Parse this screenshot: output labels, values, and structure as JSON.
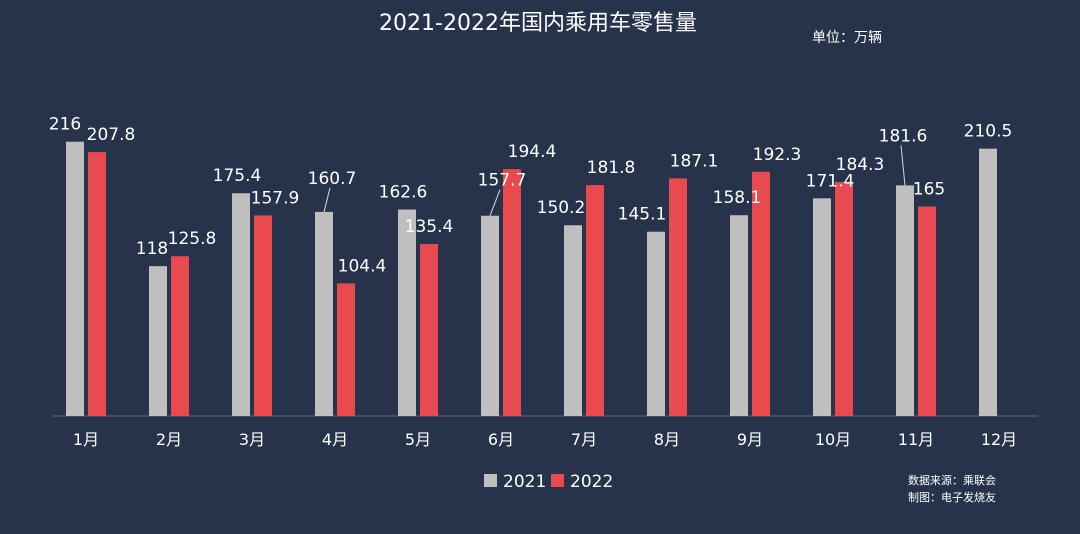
{
  "title": "2021-2022年国内乘用车零售量",
  "unit_label": "单位：万辆",
  "source_label": "数据来源：乘联会",
  "credit_label": "制图：电子发烧友",
  "colors": {
    "background": "#26334a",
    "s2021": "#bfbfbf",
    "s2022": "#e84a4f"
  },
  "chart_data": {
    "type": "bar",
    "title": "2021-2022年国内乘用车零售量",
    "ylabel": "",
    "xlabel": "",
    "ylim": [
      0,
      230
    ],
    "grid": false,
    "legend_position": "bottom-center",
    "categories": [
      "1月",
      "2月",
      "3月",
      "4月",
      "5月",
      "6月",
      "7月",
      "8月",
      "9月",
      "10月",
      "11月",
      "12月"
    ],
    "series": [
      {
        "name": "2021",
        "values": [
          216,
          118,
          175.4,
          160.7,
          162.6,
          157.7,
          150.2,
          145.1,
          158.1,
          171.4,
          181.6,
          210.5
        ]
      },
      {
        "name": "2022",
        "values": [
          207.8,
          125.8,
          157.9,
          104.4,
          135.4,
          194.4,
          181.8,
          187.1,
          192.3,
          184.3,
          165,
          null
        ]
      }
    ],
    "data_labels": [
      [
        "216",
        "118",
        "175.4",
        "160.7",
        "162.6",
        "157.7",
        "150.2",
        "145.1",
        "158.1",
        "171.4",
        "181.6",
        "210.5"
      ],
      [
        "207.8",
        "125.8",
        "157.9",
        "104.4",
        "135.4",
        "194.4",
        "181.8",
        "187.1",
        "192.3",
        "184.3",
        "165",
        null
      ]
    ]
  }
}
